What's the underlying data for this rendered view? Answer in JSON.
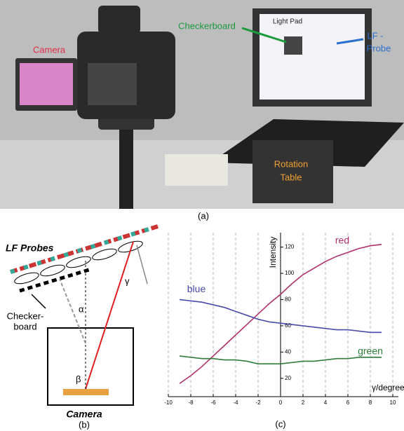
{
  "photo": {
    "camera": "Camera",
    "checkerboard": "Checkerboard",
    "light_pad": "Light Pad",
    "lf_probe": [
      "LF -",
      "Probe"
    ],
    "rotation_table": [
      "Rotation",
      "Table"
    ]
  },
  "diagram": {
    "lf_probes": "LF Probes",
    "checkerboard": [
      "Checker-",
      "board"
    ],
    "alpha": "α",
    "beta": "β",
    "gamma": "γ",
    "camera": "Camera"
  },
  "captions": [
    "(a)",
    "(b)",
    "(c)"
  ],
  "chart_data": {
    "type": "line",
    "ylabel": "Intensity",
    "xlabel": "γ/degree",
    "x": [
      -9,
      -8,
      -7,
      -6,
      -5,
      -4,
      -3,
      -2,
      -1,
      0,
      1,
      2,
      3,
      4,
      5,
      6,
      7,
      8,
      9
    ],
    "series": [
      {
        "name": "red",
        "color": "#b0306a",
        "values": [
          16,
          22,
          29,
          37,
          45,
          53,
          61,
          69,
          77,
          84,
          92,
          99,
          104,
          109,
          113,
          116,
          119,
          121,
          122
        ]
      },
      {
        "name": "blue",
        "color": "#4b4ba8",
        "values": [
          80,
          79,
          78,
          76,
          74,
          71,
          68,
          65,
          63,
          62,
          61,
          60,
          59,
          58,
          57,
          57,
          56,
          55,
          55
        ]
      },
      {
        "name": "green",
        "color": "#2f7d3a",
        "values": [
          37,
          36,
          35,
          35,
          34,
          34,
          33,
          31,
          31,
          31,
          32,
          33,
          33,
          34,
          35,
          35,
          36,
          36,
          36
        ]
      }
    ],
    "xlim": [
      -10,
      10
    ],
    "xticks": [
      -10,
      -8,
      -6,
      -4,
      -2,
      0,
      2,
      4,
      6,
      8,
      10
    ],
    "ylim": [
      6,
      131
    ],
    "yticks": [
      20,
      40,
      60,
      80,
      100,
      120
    ],
    "grid": true
  }
}
